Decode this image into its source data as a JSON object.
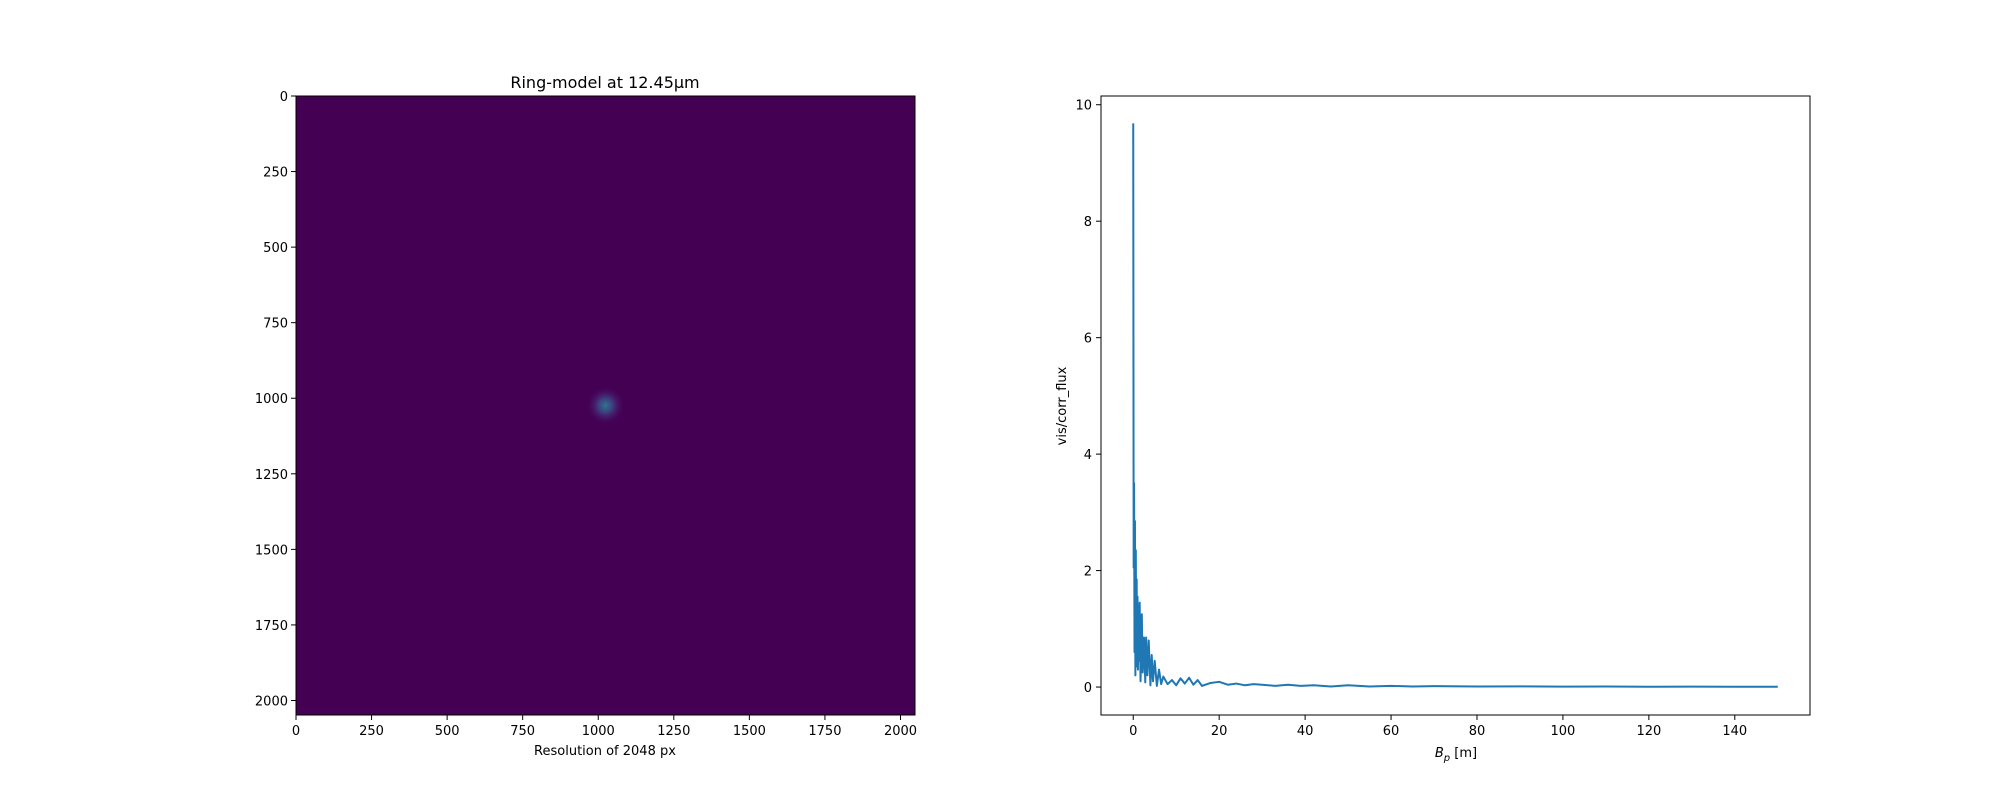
{
  "chart_data": [
    {
      "type": "heatmap",
      "title": "Ring-model at 12.45μm",
      "xlabel": "Resolution of 2048 px",
      "ylabel": "",
      "xlim": [
        0,
        2048
      ],
      "ylim": [
        2048,
        0
      ],
      "xticks": [
        0,
        250,
        500,
        750,
        1000,
        1250,
        1500,
        1750,
        2000
      ],
      "yticks": [
        0,
        250,
        500,
        750,
        1000,
        1250,
        1500,
        1750,
        2000
      ],
      "colormap": "viridis",
      "background_color": "#440154",
      "features": [
        {
          "kind": "central-source",
          "x": 1024,
          "y": 1024,
          "radius": 40
        }
      ]
    },
    {
      "type": "line",
      "title": "",
      "xlabel": "B_p [m]",
      "xlabel_main": "B",
      "xlabel_sub": "p",
      "xlabel_unit": " [m]",
      "ylabel": "vis/corr_flux",
      "xlim": [
        -7.5,
        157.5
      ],
      "ylim": [
        -0.48,
        10.15
      ],
      "xticks": [
        0,
        20,
        40,
        60,
        80,
        100,
        120,
        140
      ],
      "yticks": [
        0,
        2,
        4,
        6,
        8,
        10
      ],
      "color": "#1f77b4",
      "series": [
        {
          "name": "",
          "x": [
            0.0,
            0.1,
            0.2,
            0.3,
            0.4,
            0.5,
            0.6,
            0.7,
            0.8,
            0.9,
            1.0,
            1.1,
            1.2,
            1.3,
            1.5,
            1.7,
            2.0,
            2.2,
            2.5,
            2.8,
            3.0,
            3.3,
            3.6,
            4.0,
            4.3,
            4.6,
            5.0,
            5.5,
            6.0,
            6.5,
            7.0,
            8.0,
            9.0,
            10.0,
            11.0,
            12.0,
            13.0,
            14.0,
            15.0,
            16.0,
            18.0,
            20.0,
            22.0,
            24.0,
            26.0,
            28.0,
            30.0,
            33.0,
            36.0,
            39.0,
            42.0,
            46.0,
            50.0,
            55.0,
            60.0,
            65.0,
            70.0,
            80.0,
            90.0,
            100.0,
            110.0,
            120.0,
            130.0,
            140.0,
            150.0
          ],
          "y": [
            9.68,
            2.05,
            3.5,
            0.6,
            2.85,
            0.2,
            2.35,
            0.35,
            1.85,
            0.5,
            1.55,
            0.3,
            1.4,
            0.45,
            1.45,
            0.1,
            1.25,
            0.25,
            0.85,
            0.08,
            0.85,
            0.2,
            0.8,
            0.03,
            0.55,
            0.1,
            0.45,
            0.02,
            0.3,
            0.05,
            0.18,
            0.05,
            0.12,
            0.03,
            0.15,
            0.06,
            0.16,
            0.04,
            0.12,
            0.02,
            0.07,
            0.09,
            0.04,
            0.06,
            0.03,
            0.05,
            0.04,
            0.02,
            0.04,
            0.02,
            0.03,
            0.01,
            0.03,
            0.01,
            0.02,
            0.01,
            0.015,
            0.01,
            0.012,
            0.008,
            0.01,
            0.006,
            0.008,
            0.006,
            0.005
          ]
        }
      ]
    }
  ]
}
